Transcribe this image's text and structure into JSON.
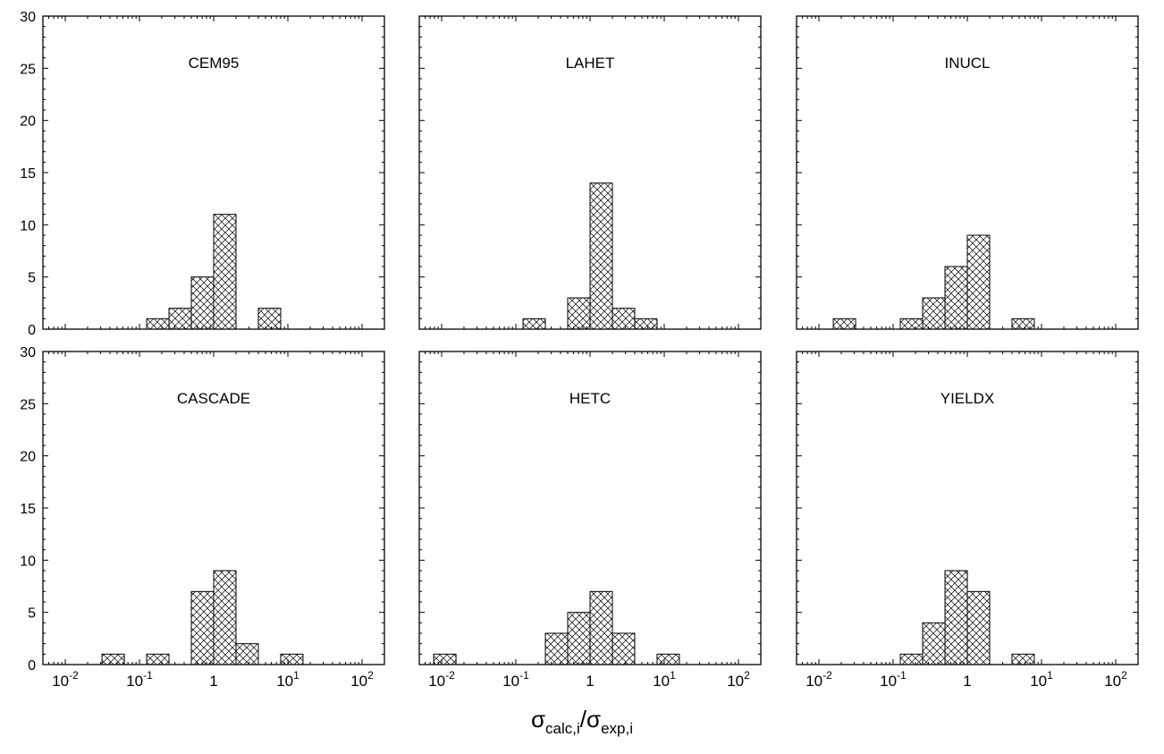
{
  "axis_title": {
    "main": "σ",
    "sub1": "calc,i",
    "slash": "/",
    "main2": "σ",
    "sub2": "exp,i"
  },
  "chart_data": [
    {
      "type": "bar",
      "title": "CEM95",
      "xscale": "log",
      "xlim": [
        0.005,
        200
      ],
      "ylim": [
        0,
        30
      ],
      "bins": [
        {
          "x0": 0.125,
          "x1": 0.25,
          "count": 1
        },
        {
          "x0": 0.25,
          "x1": 0.5,
          "count": 2
        },
        {
          "x0": 0.5,
          "x1": 1,
          "count": 5
        },
        {
          "x0": 1,
          "x1": 2,
          "count": 11
        },
        {
          "x0": 4,
          "x1": 8,
          "count": 2
        }
      ]
    },
    {
      "type": "bar",
      "title": "LAHET",
      "xscale": "log",
      "xlim": [
        0.005,
        200
      ],
      "ylim": [
        0,
        30
      ],
      "bins": [
        {
          "x0": 0.125,
          "x1": 0.25,
          "count": 1
        },
        {
          "x0": 0.5,
          "x1": 1,
          "count": 3
        },
        {
          "x0": 1,
          "x1": 2,
          "count": 14
        },
        {
          "x0": 2,
          "x1": 4,
          "count": 2
        },
        {
          "x0": 4,
          "x1": 8,
          "count": 1
        }
      ]
    },
    {
      "type": "bar",
      "title": "INUCL",
      "xscale": "log",
      "xlim": [
        0.005,
        200
      ],
      "ylim": [
        0,
        30
      ],
      "bins": [
        {
          "x0": 0.015625,
          "x1": 0.03125,
          "count": 1
        },
        {
          "x0": 0.125,
          "x1": 0.25,
          "count": 1
        },
        {
          "x0": 0.25,
          "x1": 0.5,
          "count": 3
        },
        {
          "x0": 0.5,
          "x1": 1,
          "count": 6
        },
        {
          "x0": 1,
          "x1": 2,
          "count": 9
        },
        {
          "x0": 4,
          "x1": 8,
          "count": 1
        }
      ]
    },
    {
      "type": "bar",
      "title": "CASCADE",
      "xscale": "log",
      "xlim": [
        0.005,
        200
      ],
      "ylim": [
        0,
        30
      ],
      "bins": [
        {
          "x0": 0.03125,
          "x1": 0.0625,
          "count": 1
        },
        {
          "x0": 0.125,
          "x1": 0.25,
          "count": 1
        },
        {
          "x0": 0.5,
          "x1": 1,
          "count": 7
        },
        {
          "x0": 1,
          "x1": 2,
          "count": 9
        },
        {
          "x0": 2,
          "x1": 4,
          "count": 2
        },
        {
          "x0": 8,
          "x1": 16,
          "count": 1
        }
      ]
    },
    {
      "type": "bar",
      "title": "HETC",
      "xscale": "log",
      "xlim": [
        0.005,
        200
      ],
      "ylim": [
        0,
        30
      ],
      "bins": [
        {
          "x0": 0.0078125,
          "x1": 0.015625,
          "count": 1
        },
        {
          "x0": 0.25,
          "x1": 0.5,
          "count": 3
        },
        {
          "x0": 0.5,
          "x1": 1,
          "count": 5
        },
        {
          "x0": 1,
          "x1": 2,
          "count": 7
        },
        {
          "x0": 2,
          "x1": 4,
          "count": 3
        },
        {
          "x0": 8,
          "x1": 16,
          "count": 1
        }
      ]
    },
    {
      "type": "bar",
      "title": "YIELDX",
      "xscale": "log",
      "xlim": [
        0.005,
        200
      ],
      "ylim": [
        0,
        30
      ],
      "bins": [
        {
          "x0": 0.125,
          "x1": 0.25,
          "count": 1
        },
        {
          "x0": 0.25,
          "x1": 0.5,
          "count": 4
        },
        {
          "x0": 0.5,
          "x1": 1,
          "count": 9
        },
        {
          "x0": 1,
          "x1": 2,
          "count": 7
        },
        {
          "x0": 4,
          "x1": 8,
          "count": 1
        }
      ]
    }
  ],
  "y_ticks": [
    "0",
    "5",
    "10",
    "15",
    "20",
    "25",
    "30"
  ],
  "x_ticks": [
    {
      "value": 0.01,
      "base": "10",
      "exp": "-2"
    },
    {
      "value": 0.1,
      "base": "10",
      "exp": "-1"
    },
    {
      "value": 1,
      "base": "1",
      "exp": ""
    },
    {
      "value": 10,
      "base": "10",
      "exp": "1"
    },
    {
      "value": 100,
      "base": "10",
      "exp": "2"
    }
  ]
}
